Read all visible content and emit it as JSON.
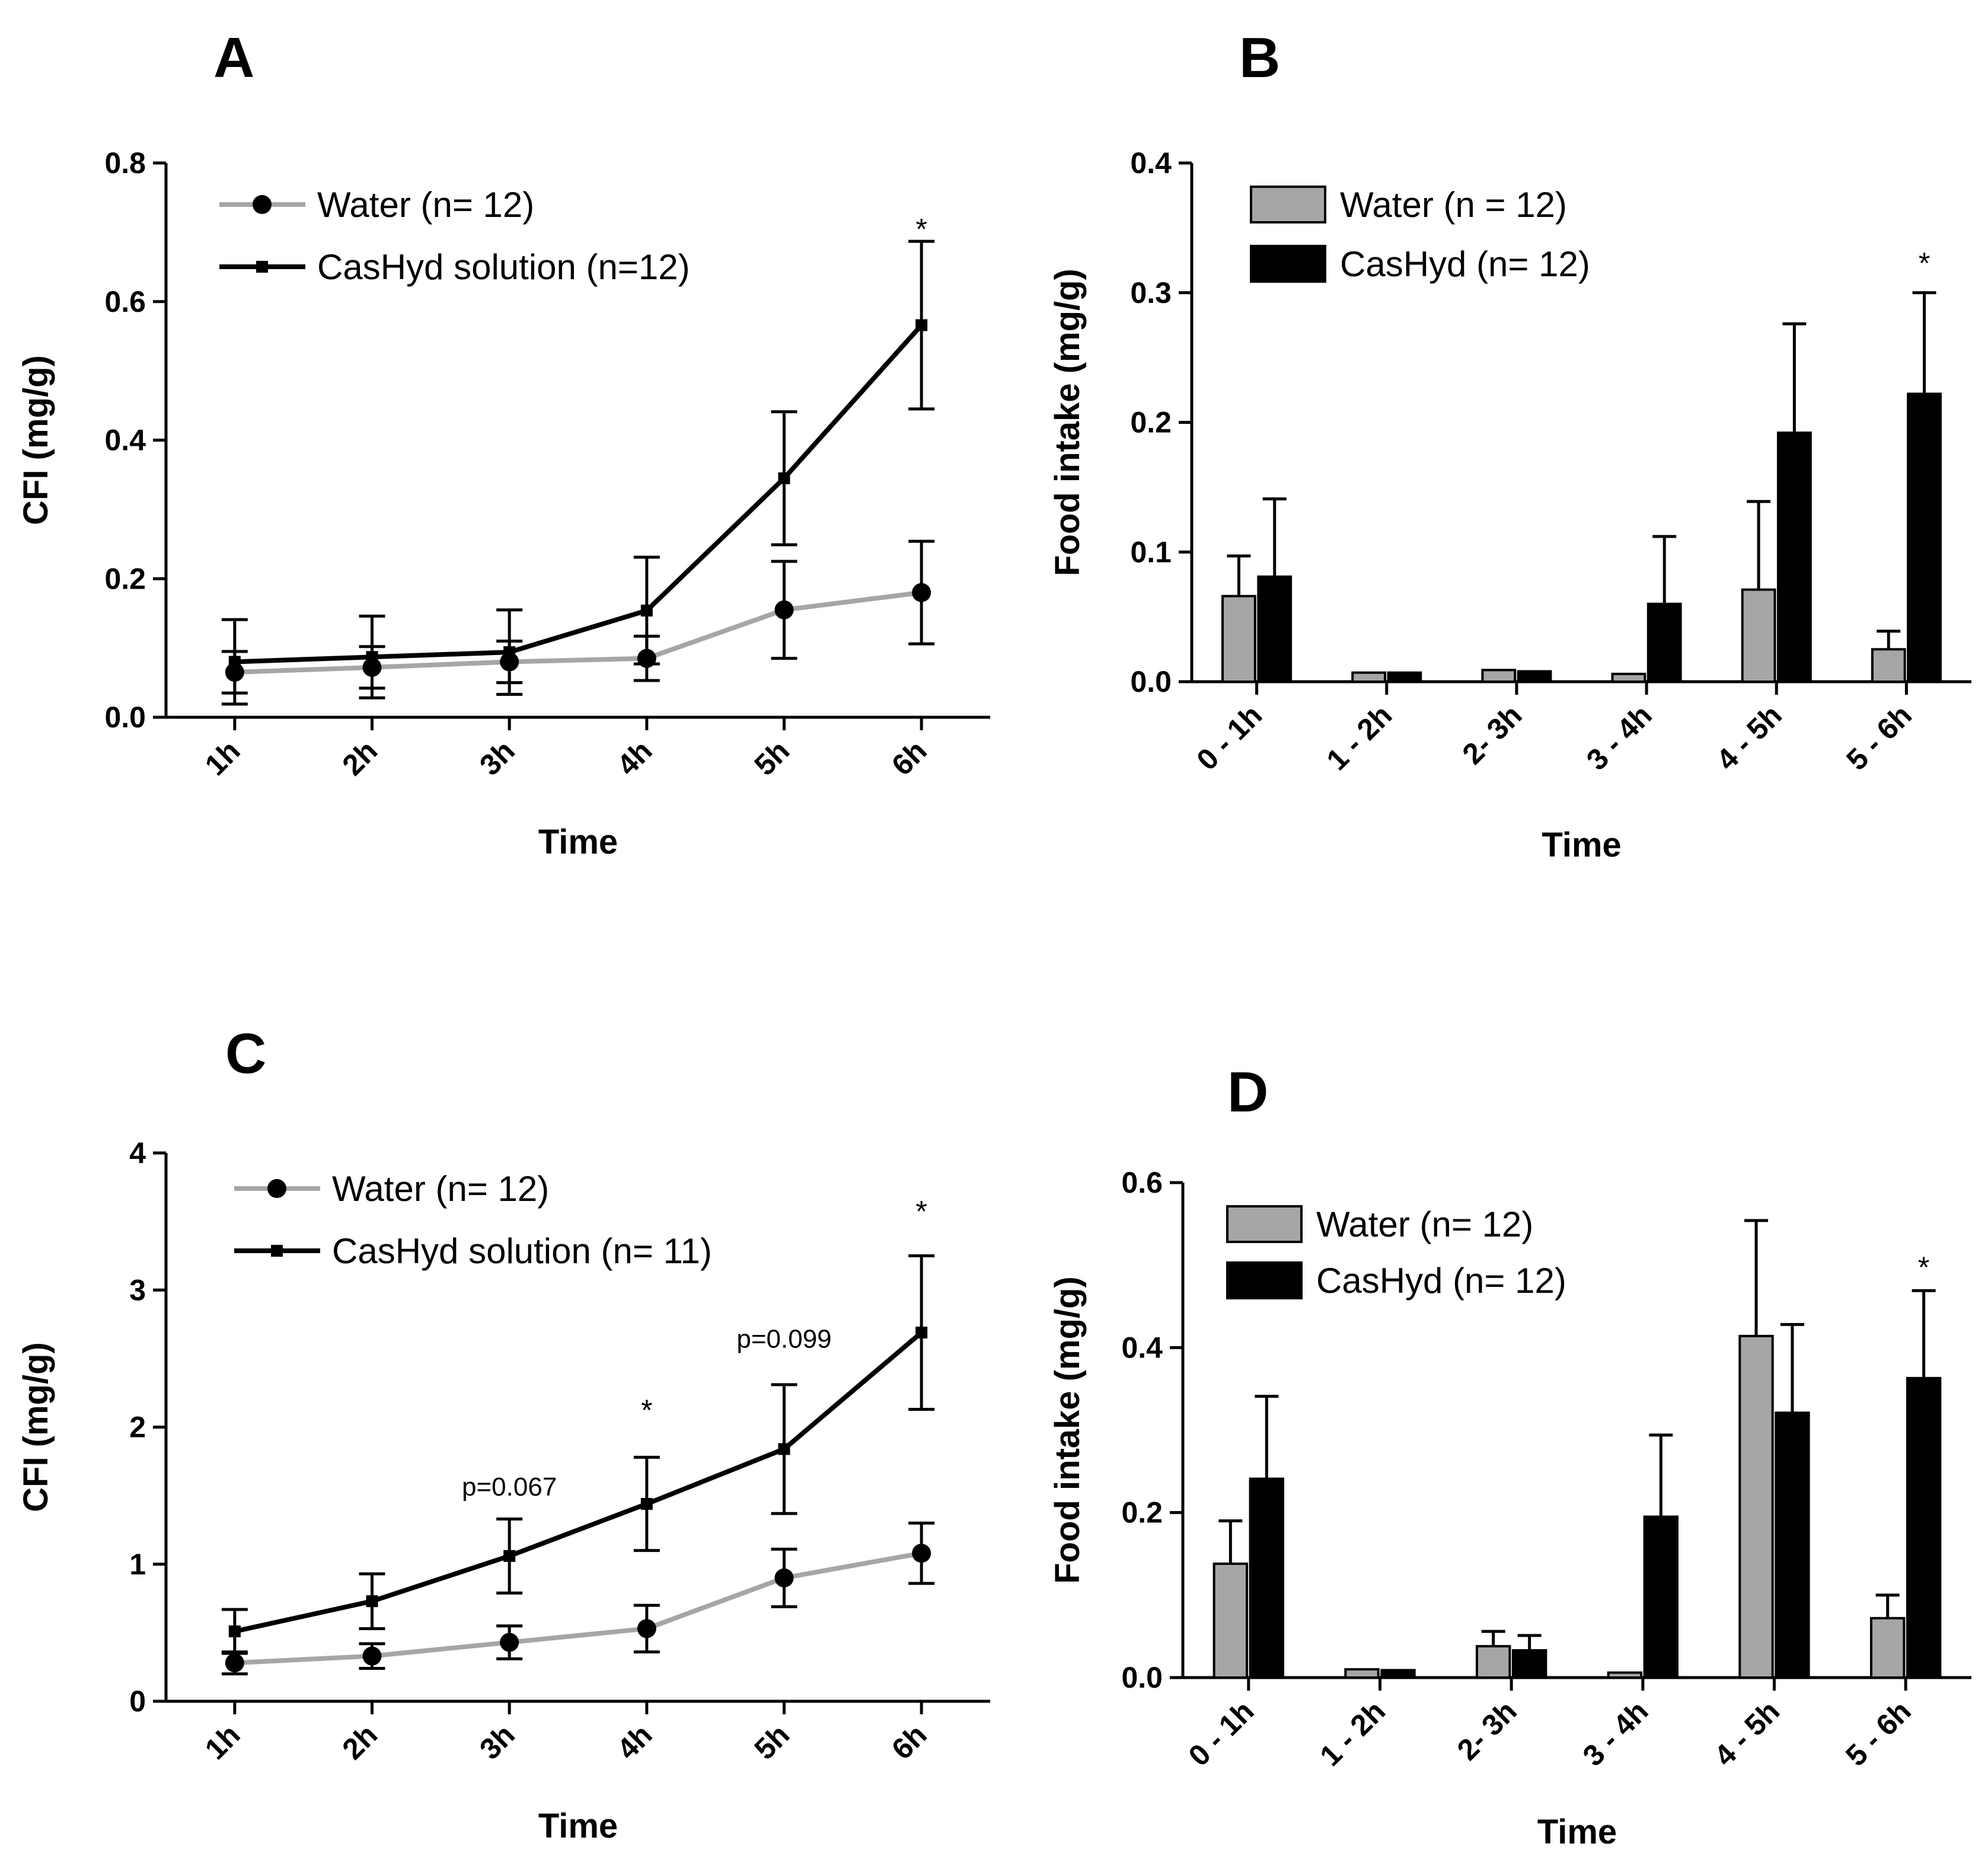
{
  "chart_data": [
    {
      "panel": "A",
      "type": "line",
      "title": "",
      "xlabel": "Time",
      "ylabel": "CFI (mg/g)",
      "categories": [
        "1h",
        "2h",
        "3h",
        "4h",
        "5h",
        "6h"
      ],
      "ylim": [
        0,
        0.8
      ],
      "yticks": [
        "0.0",
        "0.2",
        "0.4",
        "0.6",
        "0.8"
      ],
      "series": [
        {
          "name": "Water (n= 12)",
          "color": "#a6a6a6",
          "marker": "circle",
          "values": [
            0.065,
            0.072,
            0.08,
            0.085,
            0.155,
            0.18
          ],
          "errors": [
            0.03,
            0.03,
            0.03,
            0.032,
            0.07,
            0.074
          ]
        },
        {
          "name": "CasHyd solution (n=12)",
          "color": "#000000",
          "marker": "square",
          "values": [
            0.08,
            0.087,
            0.094,
            0.154,
            0.345,
            0.566
          ],
          "errors": [
            0.061,
            0.059,
            0.061,
            0.077,
            0.096,
            0.121
          ]
        }
      ],
      "annotations": [
        {
          "text": "*",
          "category": "6h",
          "value": 0.69
        }
      ]
    },
    {
      "panel": "B",
      "type": "bar",
      "title": "",
      "xlabel": "Time",
      "ylabel": "Food intake (mg/g)",
      "categories": [
        "0 - 1h",
        "1 - 2h",
        "2- 3h",
        "3 - 4h",
        "4 - 5h",
        "5 - 6h"
      ],
      "ylim": [
        0,
        0.4
      ],
      "yticks": [
        "0.0",
        "0.1",
        "0.2",
        "0.3",
        "0.4"
      ],
      "series": [
        {
          "name": "Water (n = 12)",
          "color": "#a6a6a6",
          "values": [
            0.066,
            0.007,
            0.009,
            0.006,
            0.071,
            0.025
          ],
          "errors": [
            0.031,
            0.0,
            0.0,
            0.0,
            0.068,
            0.014
          ]
        },
        {
          "name": "CasHyd (n= 12)",
          "color": "#000000",
          "values": [
            0.081,
            0.007,
            0.008,
            0.06,
            0.192,
            0.222
          ],
          "errors": [
            0.06,
            0.0,
            0.0,
            0.052,
            0.084,
            0.078
          ]
        }
      ],
      "annotations": [
        {
          "text": "*",
          "category": "5 - 6h",
          "value": 0.315
        }
      ]
    },
    {
      "panel": "C",
      "type": "line",
      "title": "",
      "xlabel": "Time",
      "ylabel": "CFI (mg/g)",
      "categories": [
        "1h",
        "2h",
        "3h",
        "4h",
        "5h",
        "6h"
      ],
      "ylim": [
        0,
        4
      ],
      "yticks": [
        "0",
        "1",
        "2",
        "3",
        "4"
      ],
      "series": [
        {
          "name": "Water (n= 12)",
          "color": "#a6a6a6",
          "marker": "circle",
          "values": [
            0.28,
            0.33,
            0.43,
            0.53,
            0.9,
            1.08
          ],
          "errors": [
            0.08,
            0.09,
            0.12,
            0.17,
            0.21,
            0.22
          ]
        },
        {
          "name": "CasHyd solution (n= 11)",
          "color": "#000000",
          "marker": "square",
          "values": [
            0.51,
            0.73,
            1.06,
            1.44,
            1.84,
            2.69
          ],
          "errors": [
            0.16,
            0.2,
            0.27,
            0.34,
            0.47,
            0.56
          ]
        }
      ],
      "annotations": [
        {
          "text": "p=0.067",
          "category": "3h",
          "value": 1.5
        },
        {
          "text": "*",
          "category": "4h",
          "value": 2.05
        },
        {
          "text": "p=0.099",
          "category": "5h",
          "value": 2.58
        },
        {
          "text": "*",
          "category": "6h",
          "value": 3.5
        }
      ]
    },
    {
      "panel": "D",
      "type": "bar",
      "title": "",
      "xlabel": "Time",
      "ylabel": "Food intake (mg/g)",
      "categories": [
        "0 - 1h",
        "1 - 2h",
        "2- 3h",
        "3 - 4h",
        "4 - 5h",
        "5 - 6h"
      ],
      "ylim": [
        0,
        0.6
      ],
      "yticks": [
        "0.0",
        "0.2",
        "0.4",
        "0.6"
      ],
      "series": [
        {
          "name": "Water (n= 12)",
          "color": "#a6a6a6",
          "values": [
            0.138,
            0.01,
            0.038,
            0.006,
            0.414,
            0.072
          ],
          "errors": [
            0.052,
            0.0,
            0.018,
            0.0,
            0.14,
            0.028
          ]
        },
        {
          "name": "CasHyd (n= 12)",
          "color": "#000000",
          "values": [
            0.241,
            0.009,
            0.033,
            0.195,
            0.321,
            0.363
          ],
          "errors": [
            0.1,
            0.0,
            0.018,
            0.099,
            0.107,
            0.106
          ]
        }
      ],
      "annotations": [
        {
          "text": "*",
          "category": "5 - 6h",
          "value": 0.485
        }
      ]
    }
  ]
}
